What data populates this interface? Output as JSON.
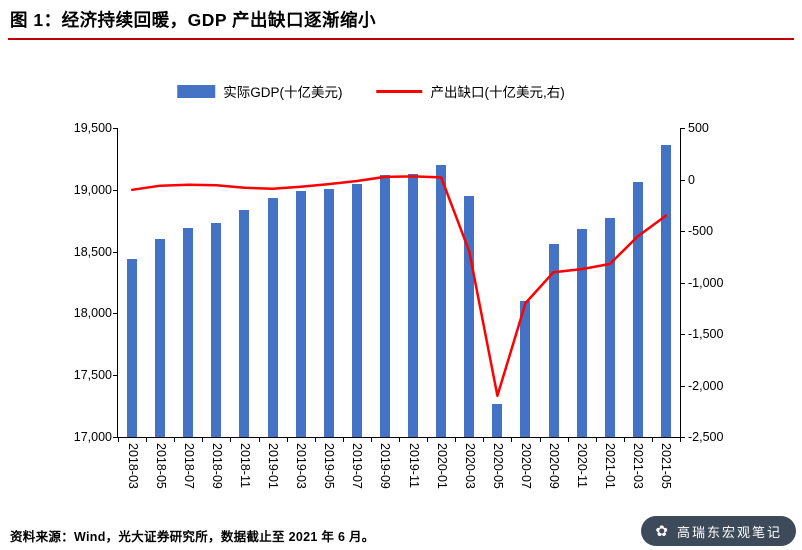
{
  "page": {
    "title": "图 1：经济持续回暖，GDP 产出缺口逐渐缩小",
    "source_note": "资料来源：Wind，光大证券研究所，数据截止至 2021 年 6 月。",
    "watermark": {
      "icon_char": "✿",
      "text": "高瑞东宏观笔记"
    }
  },
  "colors": {
    "bar": "#4472C4",
    "line": "#FF0000",
    "title_rule": "#C00000",
    "watermark_bg": "#3C4A59",
    "axis": "#000000"
  },
  "chart_data": {
    "type": "bar+line (dual axis)",
    "title": "经济持续回暖，GDP 产出缺口逐渐缩小",
    "figure_label": "图 1",
    "legend_position": "top",
    "grid": false,
    "categories": [
      "2018-03",
      "2018-05",
      "2018-07",
      "2018-09",
      "2018-11",
      "2019-01",
      "2019-03",
      "2019-05",
      "2019-07",
      "2019-09",
      "2019-11",
      "2020-01",
      "2020-03",
      "2020-05",
      "2020-07",
      "2020-09",
      "2020-11",
      "2021-01",
      "2021-03",
      "2021-05"
    ],
    "series": [
      {
        "name": "实际GDP(十亿美元)",
        "type": "bar",
        "axis": "left",
        "values": [
          18440,
          18600,
          18690,
          18730,
          18840,
          18930,
          18990,
          19010,
          19050,
          19120,
          19130,
          19200,
          18950,
          17270,
          18100,
          18560,
          18680,
          18770,
          19060,
          19360
        ]
      },
      {
        "name": "产出缺口(十亿美元,右)",
        "type": "line",
        "axis": "right",
        "values": [
          -100,
          -60,
          -50,
          -55,
          -80,
          -90,
          -70,
          -45,
          -15,
          25,
          30,
          20,
          -700,
          -2100,
          -1200,
          -900,
          -870,
          -820,
          -550,
          -350
        ]
      }
    ],
    "left_axis": {
      "min": 17000,
      "max": 19500,
      "tick_labels": [
        "19,500",
        "19,000",
        "18,500",
        "18,000",
        "17,500",
        "17,000"
      ]
    },
    "right_axis": {
      "min": -2500,
      "max": 500,
      "tick_labels": [
        "500",
        "0",
        "-500",
        "-1,000",
        "-1,500",
        "-2,000",
        "-2,500"
      ]
    }
  }
}
